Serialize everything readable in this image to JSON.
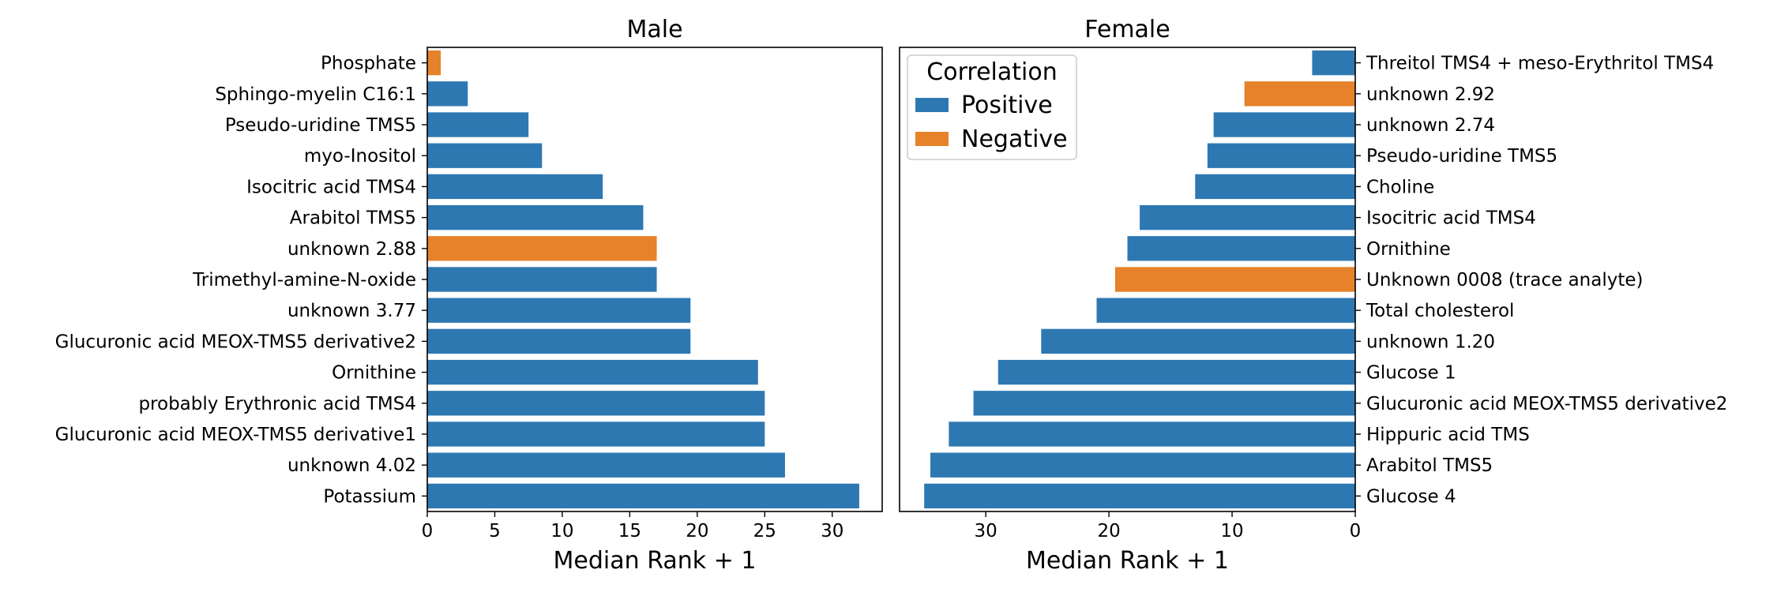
{
  "colors": {
    "positive": "#2e78b2",
    "negative": "#e6822a"
  },
  "legend": {
    "title": "Correlation",
    "entries": [
      {
        "label": "Positive",
        "key": "positive"
      },
      {
        "label": "Negative",
        "key": "negative"
      }
    ]
  },
  "chart_data": [
    {
      "type": "bar",
      "orientation": "horizontal",
      "title": "Male",
      "xlabel": "Median Rank + 1",
      "ylabel": "",
      "xlim": [
        0,
        33.7
      ],
      "xticks": [
        0,
        5,
        10,
        15,
        20,
        25,
        30
      ],
      "xticklabels": [
        "0",
        "5",
        "10",
        "15",
        "20",
        "25",
        "30"
      ],
      "x_inverted": false,
      "label_side": "left",
      "categories": [
        "Phosphate",
        "Sphingo-myelin C16:1",
        "Pseudo-uridine TMS5",
        "myo-Inositol",
        "Isocitric acid TMS4",
        "Arabitol TMS5",
        "unknown 2.88",
        "Trimethyl-amine-N-oxide",
        "unknown 3.77",
        "Glucuronic acid MEOX-TMS5 derivative2",
        "Ornithine",
        "probably Erythronic acid TMS4",
        "Glucuronic acid MEOX-TMS5 derivative1",
        "unknown 4.02",
        "Potassium"
      ],
      "values": [
        1,
        3,
        7.5,
        8.5,
        13,
        16,
        17,
        17,
        19.5,
        19.5,
        24.5,
        25,
        25,
        26.5,
        32
      ],
      "correlation": [
        "negative",
        "positive",
        "positive",
        "positive",
        "positive",
        "positive",
        "negative",
        "positive",
        "positive",
        "positive",
        "positive",
        "positive",
        "positive",
        "positive",
        "positive"
      ]
    },
    {
      "type": "bar",
      "orientation": "horizontal",
      "title": "Female",
      "xlabel": "Median Rank + 1",
      "ylabel": "",
      "xlim": [
        0,
        37
      ],
      "xticks": [
        0,
        10,
        20,
        30
      ],
      "xticklabels": [
        "0",
        "10",
        "20",
        "30"
      ],
      "x_inverted": true,
      "label_side": "right",
      "categories": [
        "Threitol TMS4 + meso-Erythritol TMS4",
        "unknown 2.92",
        "unknown 2.74",
        "Pseudo-uridine TMS5",
        "Choline",
        "Isocitric acid TMS4",
        "Ornithine",
        "Unknown 0008 (trace analyte)",
        "Total cholesterol",
        "unknown 1.20",
        "Glucose 1",
        "Glucuronic acid MEOX-TMS5 derivative2",
        "Hippuric acid TMS",
        "Arabitol TMS5",
        "Glucose 4"
      ],
      "values": [
        3.5,
        9,
        11.5,
        12,
        13,
        17.5,
        18.5,
        19.5,
        21,
        25.5,
        29,
        31,
        33,
        34.5,
        35
      ],
      "correlation": [
        "positive",
        "negative",
        "positive",
        "positive",
        "positive",
        "positive",
        "positive",
        "negative",
        "positive",
        "positive",
        "positive",
        "positive",
        "positive",
        "positive",
        "positive"
      ]
    }
  ]
}
